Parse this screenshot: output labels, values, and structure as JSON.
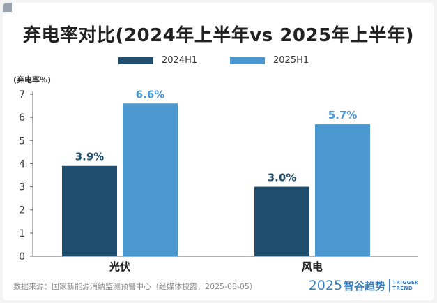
{
  "colors": {
    "series_2024": "#1f4e6e",
    "series_2025": "#4a98cf",
    "axis": "#666666",
    "brand": "#3a7fc1"
  },
  "chart_data": {
    "type": "bar",
    "title": "弃电率对比(2024年上半年vs 2025年上半年)",
    "ylabel": "(弃电率%)",
    "xlabel": "",
    "categories": [
      "光伏",
      "风电"
    ],
    "series": [
      {
        "name": "2024H1",
        "values": [
          3.9,
          3.0
        ],
        "labels": [
          "3.9%",
          "3.0%"
        ]
      },
      {
        "name": "2025H1",
        "values": [
          6.6,
          5.7
        ],
        "labels": [
          "6.6%",
          "5.7%"
        ]
      }
    ],
    "yticks": [
      "0",
      "1",
      "2",
      "3",
      "4",
      "5",
      "6",
      "7"
    ],
    "ylim": [
      0,
      7
    ],
    "grid": false,
    "legend": "top-center"
  },
  "footer": {
    "source": "数据来源：国家新能源消纳监测预警中心（经媒体披露，2025-08-05）",
    "brand_year": "2025",
    "brand_name": "智谷趋势",
    "brand_en_1": "TRIGGER",
    "brand_en_2": "TREND"
  }
}
